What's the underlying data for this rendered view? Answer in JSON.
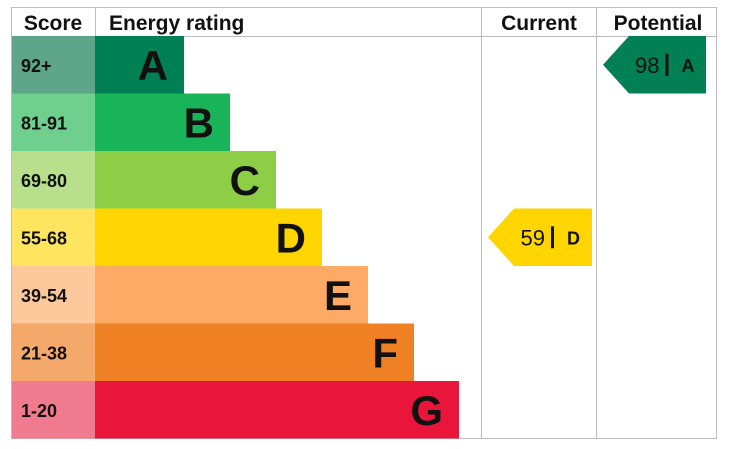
{
  "chart_data": {
    "type": "epc-rating",
    "headers": {
      "score": "Score",
      "rating": "Energy rating",
      "current": "Current",
      "potential": "Potential"
    },
    "bands": [
      {
        "letter": "A",
        "range": "92+",
        "color": "#008054",
        "score_bg": "#5fa589"
      },
      {
        "letter": "B",
        "range": "81-91",
        "color": "#19b459",
        "score_bg": "#6fcf8f"
      },
      {
        "letter": "C",
        "range": "69-80",
        "color": "#8dce46",
        "score_bg": "#b8e08c"
      },
      {
        "letter": "D",
        "range": "55-68",
        "color": "#ffd500",
        "score_bg": "#ffe45f"
      },
      {
        "letter": "E",
        "range": "39-54",
        "color": "#fcaa65",
        "score_bg": "#fdc89b"
      },
      {
        "letter": "F",
        "range": "21-38",
        "color": "#ef8023",
        "score_bg": "#f4a86a"
      },
      {
        "letter": "G",
        "range": "1-20",
        "color": "#e9153b",
        "score_bg": "#f07a8e"
      }
    ],
    "current": {
      "value": 59,
      "letter": "D",
      "color": "#ffd500"
    },
    "potential": {
      "value": 98,
      "letter": "A",
      "color": "#008054"
    }
  }
}
